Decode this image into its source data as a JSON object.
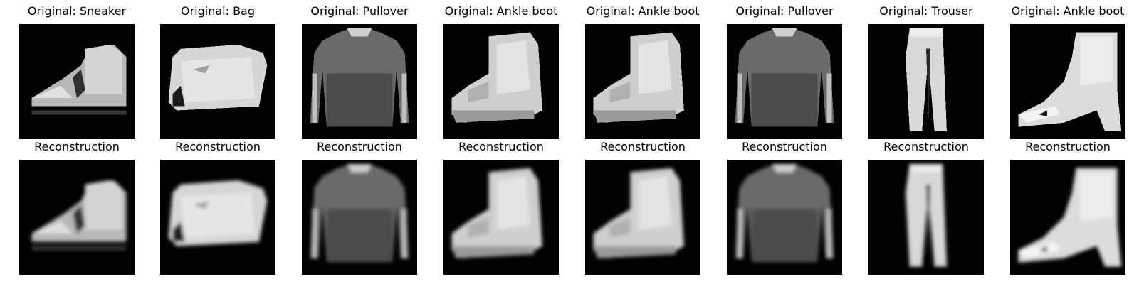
{
  "background_color": "#ffffff",
  "image_background": "#000000",
  "rows": [
    {
      "kind": "original",
      "panels": [
        {
          "title": "Original: Sneaker",
          "icon": "sneaker-icon"
        },
        {
          "title": "Original: Bag",
          "icon": "bag-icon"
        },
        {
          "title": "Original: Pullover",
          "icon": "pullover-icon"
        },
        {
          "title": "Original: Ankle boot",
          "icon": "ankle-boot-icon"
        },
        {
          "title": "Original: Ankle boot",
          "icon": "ankle-boot-icon"
        },
        {
          "title": "Original: Pullover",
          "icon": "pullover-icon"
        },
        {
          "title": "Original: Trouser",
          "icon": "trouser-icon"
        },
        {
          "title": "Original: Ankle boot",
          "icon": "heeled-boot-icon"
        }
      ]
    },
    {
      "kind": "reconstruction",
      "panels": [
        {
          "title": "Reconstruction",
          "icon": "sneaker-icon"
        },
        {
          "title": "Reconstruction",
          "icon": "bag-icon"
        },
        {
          "title": "Reconstruction",
          "icon": "pullover-icon"
        },
        {
          "title": "Reconstruction",
          "icon": "ankle-boot-icon"
        },
        {
          "title": "Reconstruction",
          "icon": "ankle-boot-icon"
        },
        {
          "title": "Reconstruction",
          "icon": "pullover-icon"
        },
        {
          "title": "Reconstruction",
          "icon": "trouser-icon"
        },
        {
          "title": "Reconstruction",
          "icon": "heeled-boot-icon"
        }
      ]
    }
  ]
}
